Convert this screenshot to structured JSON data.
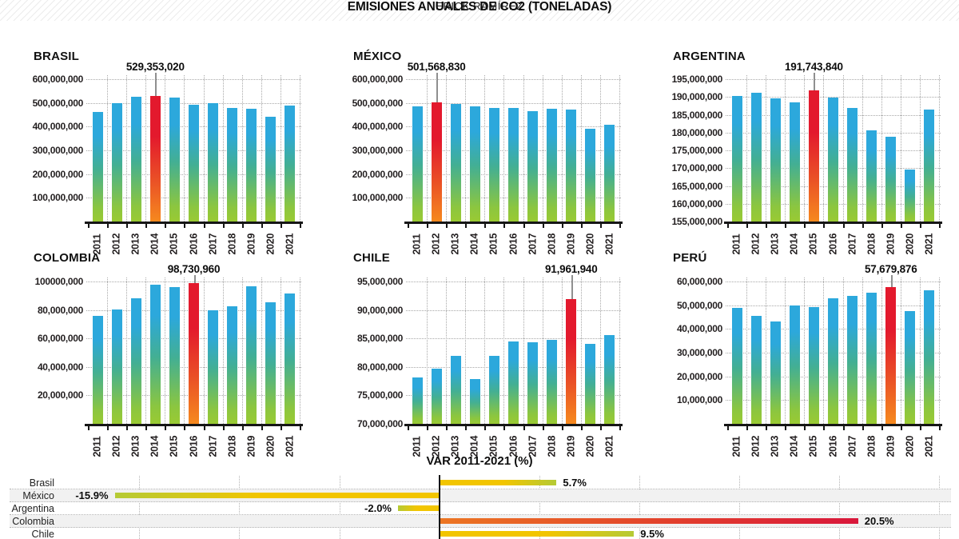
{
  "header": {
    "author": "ERICK RAMÍREZ",
    "title": "EMISIONES ANUALES DE CO2 (TONELADAS)"
  },
  "colors": {
    "bar_gradient_top": "#2CA8DC",
    "bar_gradient_mid": "#43AF93",
    "bar_gradient_bottom": "#8CC63F",
    "highlight_gradient_top": "#E3192D",
    "highlight_gradient_bottom": "#F6891E",
    "var_bar_yellow": "#F2C500",
    "var_bar_green_tip": "#B5CA35",
    "var_highlight_orange": "#EC7623",
    "var_highlight_red": "#D9173B",
    "axis_black": "#161616",
    "gridline_gray": "#a8a8a8"
  },
  "chart_data": [
    {
      "type": "bar",
      "title": "BRASIL",
      "categories": [
        "2011",
        "2012",
        "2013",
        "2014",
        "2015",
        "2016",
        "2017",
        "2018",
        "2019",
        "2020",
        "2021"
      ],
      "values": [
        463000000,
        499000000,
        526000000,
        529353020,
        523000000,
        493000000,
        499000000,
        477000000,
        475000000,
        443000000,
        489000000
      ],
      "ylim": [
        0,
        600000000
      ],
      "yticks": [
        100000000,
        200000000,
        300000000,
        400000000,
        500000000,
        600000000
      ],
      "ytick_labels": [
        "100,000,000",
        "200,000,000",
        "300,000,000",
        "400,000,000",
        "500,000,000",
        "600,000,000"
      ],
      "highlight": {
        "index": 3,
        "value": 529353020,
        "label": "529,353,020"
      }
    },
    {
      "type": "bar",
      "title": "MÉXICO",
      "categories": [
        "2011",
        "2012",
        "2013",
        "2014",
        "2015",
        "2016",
        "2017",
        "2018",
        "2019",
        "2020",
        "2021"
      ],
      "values": [
        484000000,
        501568830,
        494000000,
        484000000,
        479000000,
        478000000,
        466000000,
        474000000,
        471000000,
        392000000,
        407000000
      ],
      "ylim": [
        0,
        600000000
      ],
      "yticks": [
        100000000,
        200000000,
        300000000,
        400000000,
        500000000,
        600000000
      ],
      "ytick_labels": [
        "100,000,000",
        "200,000,000",
        "300,000,000",
        "400,000,000",
        "500,000,000",
        "600,000,000"
      ],
      "highlight": {
        "index": 1,
        "value": 501568830,
        "label": "501,568,830"
      }
    },
    {
      "type": "bar",
      "title": "ARGENTINA",
      "categories": [
        "2011",
        "2012",
        "2013",
        "2014",
        "2015",
        "2016",
        "2017",
        "2018",
        "2019",
        "2020",
        "2021"
      ],
      "values": [
        190300000,
        191200000,
        189500000,
        188400000,
        191743840,
        189900000,
        186800000,
        180600000,
        178800000,
        169600000,
        186400000
      ],
      "ylim": [
        155000000,
        195000000
      ],
      "yticks": [
        155000000,
        160000000,
        165000000,
        170000000,
        175000000,
        180000000,
        185000000,
        190000000,
        195000000
      ],
      "ytick_labels": [
        "155,000,000",
        "160,000,000",
        "165,000,000",
        "170,000,000",
        "175,000,000",
        "180,000,000",
        "185,000,000",
        "190,000,000",
        "195,000,000"
      ],
      "highlight": {
        "index": 4,
        "value": 191743840,
        "label": "191,743,840"
      }
    },
    {
      "type": "bar",
      "title": "COLOMBIA",
      "categories": [
        "2011",
        "2012",
        "2013",
        "2014",
        "2015",
        "2016",
        "2017",
        "2018",
        "2019",
        "2020",
        "2021"
      ],
      "values": [
        76100000,
        80400000,
        88300000,
        97900000,
        95800000,
        98730960,
        79900000,
        82600000,
        96600000,
        85500000,
        91700000
      ],
      "ylim": [
        0,
        100000000
      ],
      "yticks": [
        20000000,
        40000000,
        60000000,
        80000000,
        100000000
      ],
      "ytick_labels": [
        "20,000,000",
        "40,000,000",
        "60,000,000",
        "80,000,000",
        "100000,000"
      ],
      "highlight": {
        "index": 5,
        "value": 98730960,
        "label": "98,730,960"
      }
    },
    {
      "type": "bar",
      "title": "CHILE",
      "categories": [
        "2011",
        "2012",
        "2013",
        "2014",
        "2015",
        "2016",
        "2017",
        "2018",
        "2019",
        "2020",
        "2021"
      ],
      "values": [
        78200000,
        79700000,
        82000000,
        77800000,
        82000000,
        84400000,
        84300000,
        84800000,
        91961940,
        84100000,
        85600000
      ],
      "ylim": [
        70000000,
        95000000
      ],
      "yticks": [
        70000000,
        75000000,
        80000000,
        85000000,
        90000000,
        95000000
      ],
      "ytick_labels": [
        "70,000,000",
        "75,000,000",
        "80,000,000",
        "85,000,000",
        "90,000,000",
        "95,000,000"
      ],
      "highlight": {
        "index": 8,
        "value": 91961940,
        "label": "91,961,940"
      }
    },
    {
      "type": "bar",
      "title": "PERÚ",
      "categories": [
        "2011",
        "2012",
        "2013",
        "2014",
        "2015",
        "2016",
        "2017",
        "2018",
        "2019",
        "2020",
        "2021"
      ],
      "values": [
        49000000,
        45600000,
        43000000,
        49800000,
        49200000,
        52800000,
        53800000,
        55200000,
        57679876,
        47600000,
        56400000
      ],
      "ylim": [
        0,
        60000000
      ],
      "yticks": [
        10000000,
        20000000,
        30000000,
        40000000,
        50000000,
        60000000
      ],
      "ytick_labels": [
        "10,000,000",
        "20,000,000",
        "30,000,000",
        "40,000,000",
        "50,000,000",
        "60,000,000"
      ],
      "highlight": {
        "index": 8,
        "value": 57679876,
        "label": "57,679,876"
      }
    },
    {
      "type": "hbar",
      "title": "VAR 2011-2021 (%)",
      "categories": [
        "Brasil",
        "México",
        "Argentina",
        "Colombia",
        "Chile"
      ],
      "values": [
        5.7,
        -15.9,
        -2.0,
        20.5,
        9.5
      ],
      "value_labels": [
        "5.7%",
        "-15.9%",
        "-2.0%",
        "20.5%",
        "9.5%"
      ],
      "highlight_index": 3,
      "axis_at_zero": true,
      "grid": "dotted verticals every 5%"
    }
  ]
}
